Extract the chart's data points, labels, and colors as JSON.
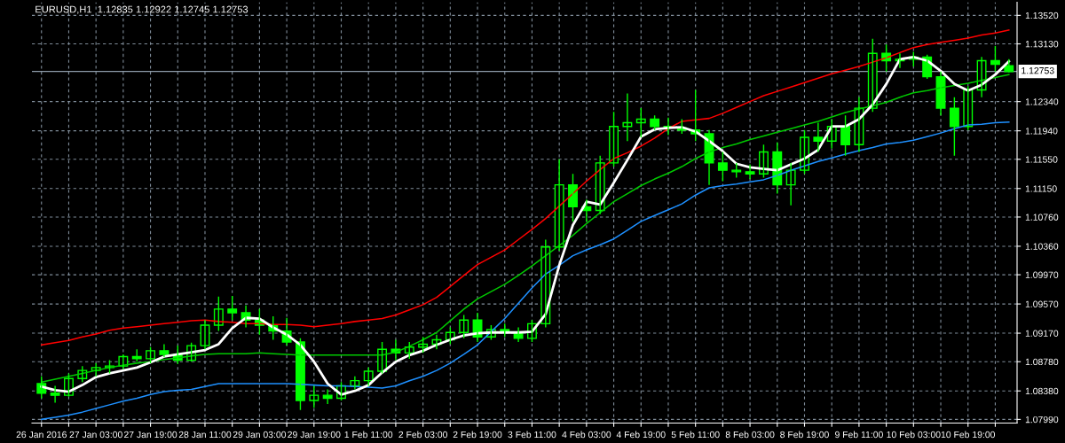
{
  "chart_data": {
    "type": "candlestick",
    "title": "EURUSD,H1  1.12835 1.12922 1.12745 1.12753",
    "color": "#00ff00",
    "categories": [
      "26 Jan 2016",
      null,
      null,
      null,
      "27 Jan 03:00",
      null,
      null,
      null,
      "27 Jan 19:00",
      null,
      null,
      null,
      "28 Jan 11:00",
      null,
      null,
      null,
      "29 Jan 03:00",
      null,
      null,
      null,
      "29 Jan 19:00",
      null,
      null,
      null,
      "1 Feb 11:00",
      null,
      null,
      null,
      "2 Feb 03:00",
      null,
      null,
      null,
      "2 Feb 19:00",
      null,
      null,
      null,
      "3 Feb 11:00",
      null,
      null,
      null,
      "4 Feb 03:00",
      null,
      null,
      null,
      "4 Feb 19:00",
      null,
      null,
      null,
      "5 Feb 11:00",
      null,
      null,
      null,
      "8 Feb 03:00",
      null,
      null,
      null,
      "8 Feb 19:00",
      null,
      null,
      null,
      "9 Feb 11:00",
      null,
      null,
      null,
      "10 Feb 03:00",
      null,
      null,
      null,
      "10 Feb 19:00",
      null,
      null,
      null
    ],
    "ohlc": [
      [
        1.0848,
        1.0858,
        1.0828,
        1.0835
      ],
      [
        1.0835,
        1.0845,
        1.0822,
        1.0832
      ],
      [
        1.0832,
        1.0862,
        1.083,
        1.0855
      ],
      [
        1.0855,
        1.0872,
        1.085,
        1.0866
      ],
      [
        1.0866,
        1.0876,
        1.0858,
        1.087
      ],
      [
        1.087,
        1.088,
        1.0862,
        1.0872
      ],
      [
        1.0872,
        1.0888,
        1.0868,
        1.0885
      ],
      [
        1.0885,
        1.0895,
        1.0878,
        1.0882
      ],
      [
        1.0882,
        1.0898,
        1.0876,
        1.0893
      ],
      [
        1.0893,
        1.0902,
        1.0884,
        1.0888
      ],
      [
        1.0888,
        1.09,
        1.0875,
        1.088
      ],
      [
        1.088,
        1.0904,
        1.0878,
        1.09
      ],
      [
        1.09,
        1.0935,
        1.0895,
        1.0928
      ],
      [
        1.0928,
        1.0967,
        1.092,
        1.095
      ],
      [
        1.095,
        1.0968,
        1.0935,
        1.0945
      ],
      [
        1.0945,
        1.0955,
        1.0925,
        1.0935
      ],
      [
        1.0935,
        1.095,
        1.0915,
        1.0928
      ],
      [
        1.0928,
        1.094,
        1.0908,
        1.092
      ],
      [
        1.092,
        1.0938,
        1.09,
        1.0905
      ],
      [
        1.0905,
        1.091,
        1.0812,
        1.0825
      ],
      [
        1.0825,
        1.0845,
        1.0815,
        1.0832
      ],
      [
        1.0832,
        1.084,
        1.082,
        1.0828
      ],
      [
        1.0828,
        1.085,
        1.0825,
        1.0845
      ],
      [
        1.0845,
        1.0858,
        1.084,
        1.0852
      ],
      [
        1.0852,
        1.087,
        1.0845,
        1.0865
      ],
      [
        1.0865,
        1.0905,
        1.0862,
        1.0895
      ],
      [
        1.0895,
        1.0908,
        1.088,
        1.089
      ],
      [
        1.089,
        1.0905,
        1.0882,
        1.0898
      ],
      [
        1.0898,
        1.0912,
        1.089,
        1.0902
      ],
      [
        1.0902,
        1.0915,
        1.0895,
        1.0908
      ],
      [
        1.0908,
        1.0925,
        1.0902,
        1.0918
      ],
      [
        1.0918,
        1.0942,
        1.091,
        1.0935
      ],
      [
        1.0935,
        1.0945,
        1.0905,
        1.0912
      ],
      [
        1.0912,
        1.0928,
        1.0908,
        1.0922
      ],
      [
        1.0922,
        1.093,
        1.0912,
        1.0918
      ],
      [
        1.0918,
        1.0925,
        1.0905,
        1.091
      ],
      [
        1.091,
        1.0935,
        1.0905,
        1.093
      ],
      [
        1.093,
        1.1045,
        1.0925,
        1.1035
      ],
      [
        1.1035,
        1.1155,
        1.103,
        1.112
      ],
      [
        1.112,
        1.1135,
        1.107,
        1.109
      ],
      [
        1.109,
        1.11,
        1.107,
        1.1085
      ],
      [
        1.1085,
        1.116,
        1.108,
        1.115
      ],
      [
        1.115,
        1.122,
        1.1145,
        1.12
      ],
      [
        1.12,
        1.1245,
        1.118,
        1.1205
      ],
      [
        1.1205,
        1.1225,
        1.1185,
        1.121
      ],
      [
        1.121,
        1.1215,
        1.1195,
        1.12
      ],
      [
        1.12,
        1.1212,
        1.1188,
        1.1198
      ],
      [
        1.1198,
        1.121,
        1.119,
        1.1195
      ],
      [
        1.1195,
        1.125,
        1.118,
        1.119
      ],
      [
        1.119,
        1.1195,
        1.112,
        1.115
      ],
      [
        1.115,
        1.1165,
        1.1125,
        1.114
      ],
      [
        1.114,
        1.115,
        1.113,
        1.1138
      ],
      [
        1.1138,
        1.1148,
        1.1128,
        1.1135
      ],
      [
        1.1135,
        1.1175,
        1.113,
        1.1165
      ],
      [
        1.1165,
        1.1178,
        1.1108,
        1.112
      ],
      [
        1.112,
        1.115,
        1.1092,
        1.114
      ],
      [
        1.114,
        1.1195,
        1.1135,
        1.1185
      ],
      [
        1.1185,
        1.1205,
        1.1165,
        1.118
      ],
      [
        1.118,
        1.121,
        1.117,
        1.12
      ],
      [
        1.12,
        1.1215,
        1.116,
        1.1175
      ],
      [
        1.1175,
        1.124,
        1.1165,
        1.1225
      ],
      [
        1.1225,
        1.132,
        1.122,
        1.13
      ],
      [
        1.13,
        1.1312,
        1.1275,
        1.129
      ],
      [
        1.129,
        1.13,
        1.128,
        1.1292
      ],
      [
        1.1292,
        1.1302,
        1.1282,
        1.1295
      ],
      [
        1.1295,
        1.1298,
        1.1265,
        1.1268
      ],
      [
        1.1268,
        1.1275,
        1.1215,
        1.1225
      ],
      [
        1.1225,
        1.124,
        1.116,
        1.12
      ],
      [
        1.12,
        1.1255,
        1.1195,
        1.125
      ],
      [
        1.125,
        1.1295,
        1.124,
        1.129
      ],
      [
        1.129,
        1.131,
        1.1275,
        1.1285
      ],
      [
        1.1283,
        1.1292,
        1.1274,
        1.1275
      ]
    ],
    "series": [
      {
        "type": "line",
        "color": "#ff0000",
        "values": [
          1.0901,
          1.0904,
          1.0907,
          1.0912,
          1.0916,
          1.0921,
          1.0924,
          1.0926,
          1.0928,
          1.093,
          1.0932,
          1.0934,
          1.0935,
          1.0933,
          1.0932,
          1.093,
          1.093,
          1.0929,
          1.0929,
          1.0928,
          1.0926,
          1.0928,
          1.093,
          1.0933,
          1.0935,
          1.0937,
          1.0942,
          1.0949,
          1.0956,
          1.0966,
          1.0981,
          1.0996,
          1.1011,
          1.1021,
          1.1031,
          1.1045,
          1.1059,
          1.1074,
          1.1091,
          1.1108,
          1.1125,
          1.1141,
          1.1156,
          1.1164,
          1.1173,
          1.1184,
          1.1197,
          1.1207,
          1.1209,
          1.1211,
          1.1218,
          1.1226,
          1.1234,
          1.1242,
          1.1248,
          1.1254,
          1.126,
          1.1266,
          1.1272,
          1.1277,
          1.1282,
          1.1288,
          1.1294,
          1.1301,
          1.1308,
          1.1312,
          1.1315,
          1.1318,
          1.1321,
          1.1325,
          1.1328,
          1.1332
        ]
      },
      {
        "type": "line",
        "color": "#00c800",
        "values": [
          1.085,
          1.0854,
          1.0858,
          1.0862,
          1.0866,
          1.087,
          1.0873,
          1.0876,
          1.0878,
          1.0881,
          1.0883,
          1.0886,
          1.0888,
          1.0889,
          1.0889,
          1.0889,
          1.089,
          1.0889,
          1.0888,
          1.0887,
          1.0887,
          1.0887,
          1.0887,
          1.0887,
          1.0887,
          1.0887,
          1.0891,
          1.0899,
          1.0908,
          1.0918,
          1.0934,
          1.095,
          1.0964,
          1.0974,
          1.0984,
          1.0996,
          1.1009,
          1.1023,
          1.1037,
          1.1051,
          1.1067,
          1.1082,
          1.1097,
          1.1108,
          1.1119,
          1.1128,
          1.1136,
          1.1145,
          1.1156,
          1.1165,
          1.1171,
          1.1176,
          1.1182,
          1.1187,
          1.1192,
          1.1197,
          1.1202,
          1.1207,
          1.1213,
          1.1219,
          1.1224,
          1.1228,
          1.1233,
          1.124,
          1.1246,
          1.1249,
          1.1253,
          1.1256,
          1.1259,
          1.1263,
          1.1267,
          1.1271
        ]
      },
      {
        "type": "line",
        "color": "#1e90ff",
        "values": [
          1.0799,
          1.0802,
          1.0805,
          1.0809,
          1.0814,
          1.0819,
          1.0824,
          1.0828,
          1.0833,
          1.0837,
          1.0839,
          1.084,
          1.0844,
          1.0848,
          1.0848,
          1.0848,
          1.0848,
          1.0848,
          1.0848,
          1.0847,
          1.0846,
          1.0845,
          1.0845,
          1.0844,
          1.0843,
          1.0842,
          1.0845,
          1.0852,
          1.0858,
          1.0866,
          1.0876,
          1.0888,
          1.0901,
          1.0919,
          1.0937,
          1.0958,
          1.0979,
          1.0998,
          1.101,
          1.1023,
          1.1031,
          1.1038,
          1.1046,
          1.1058,
          1.107,
          1.1078,
          1.1086,
          1.1094,
          1.1106,
          1.1116,
          1.1119,
          1.1121,
          1.1124,
          1.1127,
          1.1133,
          1.114,
          1.1146,
          1.1152,
          1.1157,
          1.1162,
          1.1167,
          1.1171,
          1.1176,
          1.1178,
          1.1181,
          1.1186,
          1.1191,
          1.1197,
          1.1202,
          1.1203,
          1.1205,
          1.1206
        ]
      },
      {
        "type": "line",
        "color": "#ffffff",
        "values": [
          1.0844,
          1.0839,
          1.0837,
          1.0846,
          1.0857,
          1.0862,
          1.0866,
          1.087,
          1.0877,
          1.0885,
          1.0888,
          1.0891,
          1.0894,
          1.0902,
          1.0924,
          1.0938,
          1.0937,
          1.0925,
          1.0915,
          1.0901,
          1.0878,
          1.0848,
          1.0833,
          1.0838,
          1.0846,
          1.0863,
          1.0878,
          1.0887,
          1.0893,
          1.0901,
          1.0908,
          1.0914,
          1.0917,
          1.0918,
          1.0918,
          1.0918,
          1.0919,
          1.0943,
          1.101,
          1.1065,
          1.1097,
          1.1093,
          1.1123,
          1.1154,
          1.1186,
          1.1196,
          1.1198,
          1.1199,
          1.1193,
          1.118,
          1.1166,
          1.1149,
          1.1144,
          1.1142,
          1.114,
          1.1148,
          1.1156,
          1.1168,
          1.12,
          1.12,
          1.121,
          1.123,
          1.1258,
          1.1292,
          1.1295,
          1.129,
          1.1276,
          1.1258,
          1.1249,
          1.1257,
          1.1271,
          1.1289
        ]
      }
    ],
    "ylim": [
      1.0794,
      1.137
    ],
    "yticks": [
      {
        "value": 1.0799,
        "label": "1.07990"
      },
      {
        "value": 1.0838,
        "label": "1.08380"
      },
      {
        "value": 1.0878,
        "label": "1.08780"
      },
      {
        "value": 1.0917,
        "label": "1.09170"
      },
      {
        "value": 1.0957,
        "label": "1.09570"
      },
      {
        "value": 1.0997,
        "label": "1.09970"
      },
      {
        "value": 1.1036,
        "label": "1.10360"
      },
      {
        "value": 1.1076,
        "label": "1.10760"
      },
      {
        "value": 1.1115,
        "label": "1.11150"
      },
      {
        "value": 1.1155,
        "label": "1.11550"
      },
      {
        "value": 1.1194,
        "label": "1.11940"
      },
      {
        "value": 1.1234,
        "label": "1.12340"
      },
      {
        "value": 1.1313,
        "label": "1.13130"
      },
      {
        "value": 1.1352,
        "label": "1.13520"
      }
    ],
    "grid": true,
    "ref_lines": [
      {
        "axis": "y",
        "value": 1.12753,
        "label": "1.12753",
        "color": "#8c9aa8",
        "line_style": "solid"
      }
    ]
  }
}
